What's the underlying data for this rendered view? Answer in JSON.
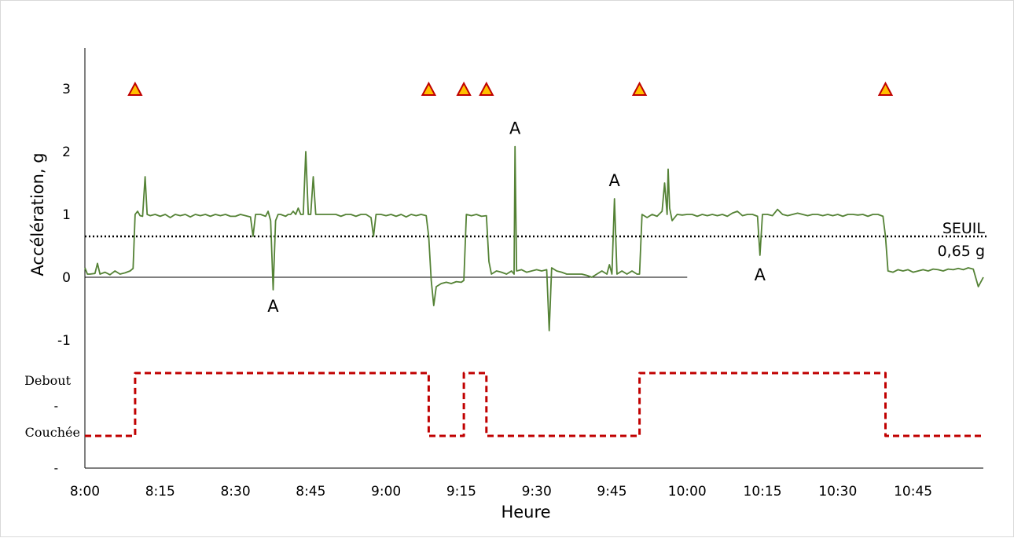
{
  "chart_data": {
    "type": "line",
    "xlabel": "Heure",
    "ylabel": "Accélération, g",
    "x_tick_labels": [
      "8:00",
      "8:15",
      "8:30",
      "8:45",
      "9:00",
      "9:15",
      "9:30",
      "9:45",
      "10:00",
      "10:15",
      "10:30",
      "10:45"
    ],
    "y_tick_labels": [
      "3",
      "2",
      "1",
      "0",
      "-1"
    ],
    "ylim": [
      -1.5,
      3.6
    ],
    "xlim_minutes": [
      0,
      179
    ],
    "threshold": {
      "value": 0.65,
      "label_line1": "SEUIL",
      "label_line2": "0,65 g",
      "style": "dotted"
    },
    "zero_line": {
      "value": 0,
      "x_end_minutes": 120
    },
    "series": [
      {
        "color": "#548235",
        "points": [
          [
            0,
            0.15
          ],
          [
            0.5,
            0.05
          ],
          [
            1,
            0.05
          ],
          [
            2,
            0.06
          ],
          [
            2.5,
            0.22
          ],
          [
            3,
            0.05
          ],
          [
            4,
            0.08
          ],
          [
            5,
            0.04
          ],
          [
            6,
            0.1
          ],
          [
            7,
            0.05
          ],
          [
            8,
            0.07
          ],
          [
            9,
            0.1
          ],
          [
            9.6,
            0.14
          ],
          [
            10,
            1.0
          ],
          [
            10.5,
            1.05
          ],
          [
            11,
            0.98
          ],
          [
            11.5,
            0.97
          ],
          [
            12,
            1.6
          ],
          [
            12.4,
            1.0
          ],
          [
            13,
            0.98
          ],
          [
            14,
            1.0
          ],
          [
            15,
            0.97
          ],
          [
            16,
            1.0
          ],
          [
            17,
            0.95
          ],
          [
            18,
            1.0
          ],
          [
            19,
            0.98
          ],
          [
            20,
            1.0
          ],
          [
            21,
            0.96
          ],
          [
            22,
            1.0
          ],
          [
            23,
            0.98
          ],
          [
            24,
            1.0
          ],
          [
            25,
            0.97
          ],
          [
            26,
            1.0
          ],
          [
            27,
            0.98
          ],
          [
            28,
            1.0
          ],
          [
            29,
            0.97
          ],
          [
            30,
            0.97
          ],
          [
            31,
            1.0
          ],
          [
            32,
            0.98
          ],
          [
            33,
            0.96
          ],
          [
            33.5,
            0.65
          ],
          [
            34,
            1.0
          ],
          [
            35,
            1.0
          ],
          [
            36,
            0.97
          ],
          [
            36.5,
            1.05
          ],
          [
            37,
            0.9
          ],
          [
            37.5,
            -0.2
          ],
          [
            38,
            0.9
          ],
          [
            38.5,
            1.0
          ],
          [
            39,
            1.0
          ],
          [
            40,
            0.97
          ],
          [
            40.5,
            1.0
          ],
          [
            41,
            1.0
          ],
          [
            41.5,
            1.05
          ],
          [
            42,
            1.0
          ],
          [
            42.5,
            1.1
          ],
          [
            43,
            1.0
          ],
          [
            43.5,
            1.0
          ],
          [
            44,
            2.0
          ],
          [
            44.5,
            1.0
          ],
          [
            45,
            1.0
          ],
          [
            45.5,
            1.6
          ],
          [
            46,
            1.0
          ],
          [
            47,
            1.0
          ],
          [
            48,
            1.0
          ],
          [
            49,
            1.0
          ],
          [
            50,
            1.0
          ],
          [
            51,
            0.97
          ],
          [
            52,
            1.0
          ],
          [
            53,
            1.0
          ],
          [
            54,
            0.97
          ],
          [
            55,
            1.0
          ],
          [
            56,
            1.0
          ],
          [
            57,
            0.95
          ],
          [
            57.5,
            0.65
          ],
          [
            58,
            1.0
          ],
          [
            59,
            1.0
          ],
          [
            60,
            0.98
          ],
          [
            61,
            1.0
          ],
          [
            62,
            0.97
          ],
          [
            63,
            1.0
          ],
          [
            64,
            0.96
          ],
          [
            65,
            1.0
          ],
          [
            66,
            0.98
          ],
          [
            67,
            1.0
          ],
          [
            68,
            0.98
          ],
          [
            68.5,
            0.65
          ],
          [
            69,
            -0.05
          ],
          [
            69.5,
            -0.45
          ],
          [
            70,
            -0.15
          ],
          [
            71,
            -0.1
          ],
          [
            72,
            -0.08
          ],
          [
            73,
            -0.1
          ],
          [
            74,
            -0.07
          ],
          [
            75,
            -0.08
          ],
          [
            75.5,
            -0.05
          ],
          [
            76,
            1.0
          ],
          [
            77,
            0.98
          ],
          [
            78,
            1.0
          ],
          [
            79,
            0.97
          ],
          [
            80,
            0.98
          ],
          [
            80.5,
            0.25
          ],
          [
            81,
            0.05
          ],
          [
            82,
            0.1
          ],
          [
            83,
            0.08
          ],
          [
            84,
            0.05
          ],
          [
            85,
            0.1
          ],
          [
            85.5,
            0.05
          ],
          [
            85.7,
            2.08
          ],
          [
            86,
            0.1
          ],
          [
            87,
            0.12
          ],
          [
            88,
            0.08
          ],
          [
            89,
            0.1
          ],
          [
            90,
            0.12
          ],
          [
            91,
            0.1
          ],
          [
            92,
            0.12
          ],
          [
            92.5,
            -0.85
          ],
          [
            93,
            0.15
          ],
          [
            94,
            0.1
          ],
          [
            95,
            0.08
          ],
          [
            96,
            0.05
          ],
          [
            97,
            0.05
          ],
          [
            98,
            0.05
          ],
          [
            99,
            0.05
          ],
          [
            100,
            0.03
          ],
          [
            101,
            0.0
          ],
          [
            102,
            0.05
          ],
          [
            103,
            0.1
          ],
          [
            104,
            0.05
          ],
          [
            104.5,
            0.2
          ],
          [
            105,
            0.05
          ],
          [
            105.5,
            1.25
          ],
          [
            106,
            0.05
          ],
          [
            107,
            0.1
          ],
          [
            108,
            0.05
          ],
          [
            109,
            0.1
          ],
          [
            110,
            0.05
          ],
          [
            110.5,
            0.05
          ],
          [
            111,
            1.0
          ],
          [
            112,
            0.95
          ],
          [
            113,
            1.0
          ],
          [
            114,
            0.97
          ],
          [
            115,
            1.05
          ],
          [
            115.5,
            1.5
          ],
          [
            116,
            1.0
          ],
          [
            116.2,
            1.72
          ],
          [
            116.5,
            1.1
          ],
          [
            117,
            0.9
          ],
          [
            118,
            1.0
          ],
          [
            119,
            0.99
          ],
          [
            120,
            1.0
          ],
          [
            121,
            1.0
          ],
          [
            122,
            0.97
          ],
          [
            123,
            1.0
          ],
          [
            124,
            0.98
          ],
          [
            125,
            1.0
          ],
          [
            126,
            0.98
          ],
          [
            127,
            1.0
          ],
          [
            128,
            0.97
          ],
          [
            129,
            1.02
          ],
          [
            130,
            1.05
          ],
          [
            131,
            0.98
          ],
          [
            132,
            1.0
          ],
          [
            133,
            1.0
          ],
          [
            134,
            0.97
          ],
          [
            134.5,
            0.35
          ],
          [
            135,
            1.0
          ],
          [
            136,
            1.0
          ],
          [
            137,
            0.98
          ],
          [
            138,
            1.08
          ],
          [
            139,
            1.0
          ],
          [
            140,
            0.98
          ],
          [
            141,
            1.0
          ],
          [
            142,
            1.02
          ],
          [
            143,
            1.0
          ],
          [
            144,
            0.98
          ],
          [
            145,
            1.0
          ],
          [
            146,
            1.0
          ],
          [
            147,
            0.98
          ],
          [
            148,
            1.0
          ],
          [
            149,
            0.98
          ],
          [
            150,
            1.0
          ],
          [
            151,
            0.97
          ],
          [
            152,
            1.0
          ],
          [
            153,
            1.0
          ],
          [
            154,
            0.99
          ],
          [
            155,
            1.0
          ],
          [
            156,
            0.97
          ],
          [
            157,
            1.0
          ],
          [
            158,
            1.0
          ],
          [
            159,
            0.97
          ],
          [
            159.5,
            0.65
          ],
          [
            160,
            0.1
          ],
          [
            161,
            0.08
          ],
          [
            162,
            0.12
          ],
          [
            163,
            0.1
          ],
          [
            164,
            0.12
          ],
          [
            165,
            0.08
          ],
          [
            166,
            0.1
          ],
          [
            167,
            0.12
          ],
          [
            168,
            0.1
          ],
          [
            169,
            0.13
          ],
          [
            170,
            0.12
          ],
          [
            171,
            0.1
          ],
          [
            172,
            0.13
          ],
          [
            173,
            0.12
          ],
          [
            174,
            0.14
          ],
          [
            175,
            0.12
          ],
          [
            176,
            0.15
          ],
          [
            177,
            0.13
          ],
          [
            178,
            -0.15
          ],
          [
            179,
            0.0
          ]
        ]
      },
      {
        "color": "#C00000",
        "style": "dashed",
        "axis": "posture",
        "points": [
          [
            0,
            0
          ],
          [
            10,
            0
          ],
          [
            10,
            1
          ],
          [
            68.5,
            1
          ],
          [
            68.5,
            0
          ],
          [
            75.5,
            0
          ],
          [
            75.5,
            1
          ],
          [
            80,
            1
          ],
          [
            80,
            0
          ],
          [
            110.5,
            0
          ],
          [
            110.5,
            1
          ],
          [
            159.5,
            1
          ],
          [
            159.5,
            0
          ],
          [
            179,
            0
          ]
        ]
      }
    ],
    "posture_levels": {
      "top": "Debout",
      "mid": "-",
      "bottom": "Couchée",
      "below": "-"
    },
    "event_markers": {
      "y": 3,
      "fill": "#FFC000",
      "stroke": "#C00000",
      "x_minutes": [
        10,
        68.5,
        75.5,
        80,
        110.5,
        159.5
      ]
    },
    "annotations": [
      {
        "text": "A",
        "x_minutes": 37.5,
        "y": -0.45
      },
      {
        "text": "A",
        "x_minutes": 85.7,
        "y": 2.38
      },
      {
        "text": "A",
        "x_minutes": 105.5,
        "y": 1.55
      },
      {
        "text": "A",
        "x_minutes": 134.5,
        "y": 0.05
      }
    ]
  }
}
